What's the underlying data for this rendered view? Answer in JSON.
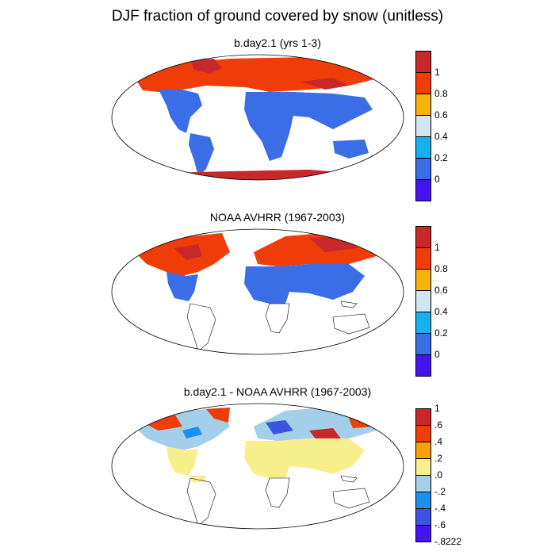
{
  "title": "DJF fraction of ground covered by snow (unitless)",
  "panels": [
    {
      "title": "b.day2.1 (yrs 1-3)",
      "colorbar": {
        "colors": [
          "#c8282a",
          "#f03c06",
          "#f6b305",
          "#cfe5f2",
          "#17b0ee",
          "#3b6ee6",
          "#4513f0"
        ],
        "labels": [
          "1",
          "0.8",
          "0.6",
          "0.4",
          "0.2",
          "0"
        ]
      }
    },
    {
      "title": "NOAA AVHRR (1967-2003)",
      "colorbar": {
        "colors": [
          "#c8282a",
          "#f03c06",
          "#f6b305",
          "#cfe5f2",
          "#17b0ee",
          "#3b6ee6",
          "#4513f0"
        ],
        "labels": [
          "1",
          "0.8",
          "0.6",
          "0.4",
          "0.2",
          "0"
        ]
      }
    },
    {
      "title": "b.day2.1 - NOAA AVHRR (1967-2003)",
      "colorbar": {
        "colors": [
          "#c8282a",
          "#f03c06",
          "#f6a10a",
          "#f7ef8c",
          "#a3cfea",
          "#1c8ff0",
          "#3b55e0",
          "#4513f0"
        ],
        "labels": [
          "1",
          ".6",
          ".4",
          ".2",
          ".0",
          "-.2",
          "-.4",
          "-.6",
          "-.8222"
        ]
      }
    }
  ],
  "colors": {
    "land_low": "#3b6ee6",
    "snow_high": "#f03c06",
    "snow_full": "#c8282a",
    "diff_yellow": "#f7ef8c",
    "diff_lightblue": "#a3cfea"
  }
}
